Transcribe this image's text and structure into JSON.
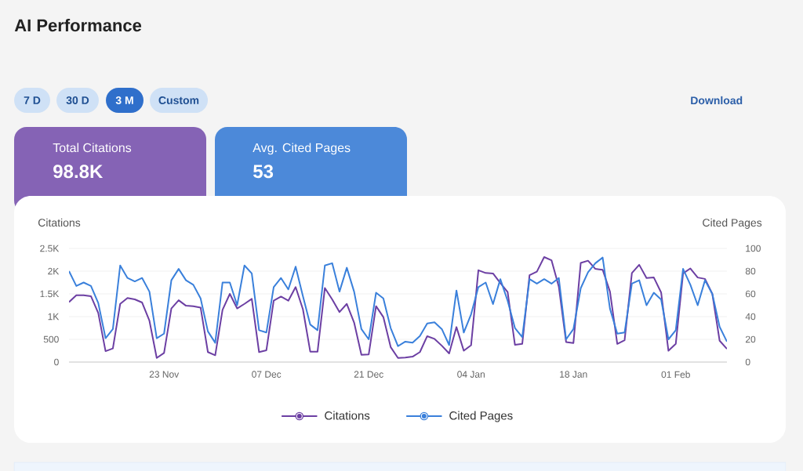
{
  "chart_data": [
    {
      "type": "other",
      "title": "AI Performance",
      "annotations": [
        "7 D",
        "30 D",
        "3 M",
        "Custom",
        "Download",
        "Total Citations",
        "98.8K",
        "Avg. Cited Pages",
        "53"
      ]
    },
    {
      "type": "line",
      "ylabel": "Citations",
      "y2label": "Cited Pages",
      "grid": "y",
      "legend": "bottom",
      "categories": [
        null,
        null,
        null,
        null,
        null,
        null,
        null,
        null,
        null,
        null,
        null,
        null,
        null,
        "23 Nov",
        null,
        null,
        null,
        null,
        null,
        null,
        null,
        null,
        null,
        null,
        null,
        null,
        null,
        "07 Dec",
        null,
        null,
        null,
        null,
        null,
        null,
        null,
        null,
        null,
        null,
        null,
        null,
        null,
        "21 Dec",
        null,
        null,
        null,
        null,
        null,
        null,
        null,
        null,
        null,
        null,
        null,
        null,
        null,
        "04 Jan",
        null,
        null,
        null,
        null,
        null,
        null,
        null,
        null,
        null,
        null,
        null,
        null,
        null,
        "18 Jan",
        null,
        null,
        null,
        null,
        null,
        null,
        null,
        null,
        null,
        null,
        null,
        null,
        null,
        "01 Feb",
        null,
        null,
        null,
        null,
        null,
        null,
        null
      ],
      "ylim": [
        0,
        2500
      ],
      "yticks": [
        0,
        500,
        {
          "value": 1000,
          "label": "1K"
        },
        {
          "value": 1500,
          "label": "1.5K"
        },
        {
          "value": 2000,
          "label": "2K"
        },
        {
          "value": 2500,
          "label": "2.5K"
        }
      ],
      "y2lim": [
        0,
        100
      ],
      "y2ticks": [
        0,
        20,
        40,
        60,
        80,
        100
      ],
      "series": [
        {
          "name": "Citations",
          "color": "#6c3fa3",
          "values": [
            1320,
            1470,
            1470,
            1450,
            1080,
            240,
            300,
            1280,
            1410,
            1380,
            1310,
            910,
            90,
            200,
            1180,
            1360,
            1240,
            1230,
            1200,
            220,
            150,
            1150,
            1500,
            1180,
            1280,
            1390,
            220,
            260,
            1350,
            1440,
            1350,
            1650,
            1160,
            230,
            230,
            1630,
            1380,
            1100,
            1280,
            870,
            160,
            170,
            1230,
            990,
            330,
            90,
            100,
            120,
            220,
            570,
            510,
            360,
            190,
            770,
            250,
            370,
            2020,
            1960,
            1950,
            1740,
            1540,
            380,
            400,
            1910,
            1990,
            2310,
            2240,
            1660,
            440,
            420,
            2180,
            2230,
            2050,
            2030,
            1550,
            400,
            480,
            1960,
            2140,
            1850,
            1860,
            1530,
            250,
            400,
            1950,
            2060,
            1860,
            1830,
            1500,
            470,
            290
          ]
        },
        {
          "name": "Cited Pages",
          "color": "#3a80db",
          "axis": "y2",
          "values": [
            80,
            67,
            70,
            67,
            52,
            21,
            29,
            85,
            74,
            71,
            74,
            62,
            21,
            25,
            72,
            82,
            72,
            68,
            56,
            27,
            17,
            70,
            70,
            50,
            85,
            78,
            28,
            26,
            66,
            74,
            64,
            84,
            58,
            33,
            28,
            85,
            87,
            62,
            83,
            62,
            29,
            20,
            61,
            56,
            30,
            14,
            18,
            17,
            23,
            34,
            35,
            29,
            15,
            63,
            26,
            42,
            66,
            70,
            51,
            73,
            54,
            30,
            22,
            73,
            69,
            73,
            69,
            74,
            20,
            29,
            65,
            79,
            87,
            92,
            47,
            25,
            26,
            69,
            72,
            50,
            61,
            55,
            20,
            28,
            82,
            68,
            50,
            72,
            60,
            31,
            18
          ]
        }
      ]
    }
  ]
}
